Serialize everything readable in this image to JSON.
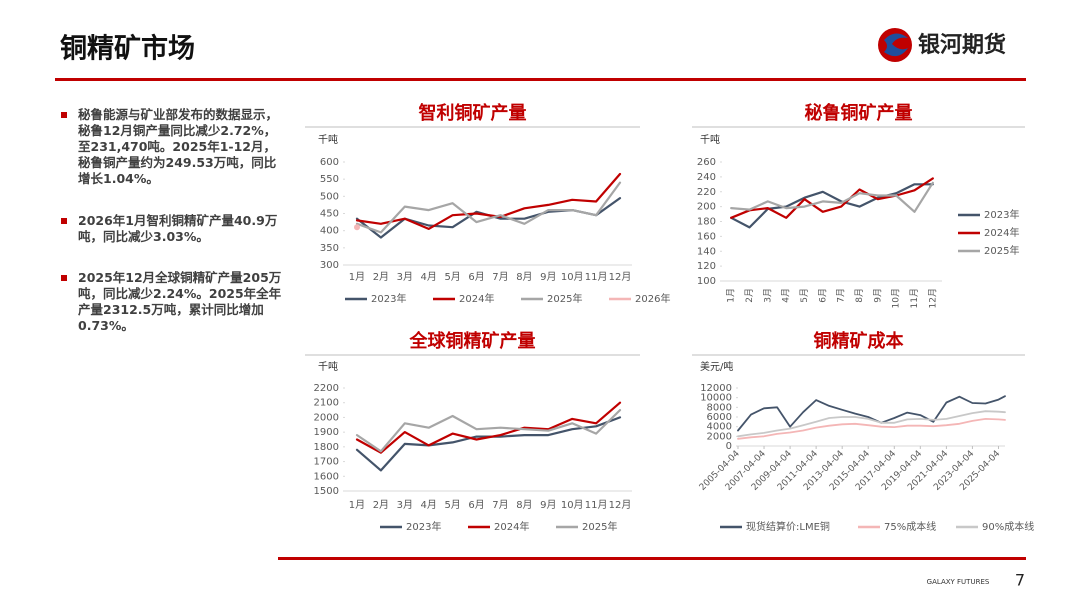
{
  "header": {
    "title": "铜精矿市场",
    "brand": "银河期货"
  },
  "bullets": [
    "秘鲁能源与矿业部发布的数据显示，秘鲁12月铜产量同比减少2.72%，至231,470吨。2025年1-12月，秘鲁铜产量约为249.53万吨，同比增长1.04%。",
    "2026年1月智利铜精矿产量40.9万吨，同比减少3.03%。",
    "2025年12月全球铜精矿产量205万吨，同比减少2.24%。2025年全年产量2312.5万吨，累计同比增加0.73%。"
  ],
  "footer": {
    "brand": "GALAXY FUTURES",
    "page": "7"
  },
  "chart_data": [
    {
      "type": "line",
      "title": "智利铜矿产量",
      "y_label": "千吨",
      "legend": "bottom",
      "categories": [
        "1月",
        "2月",
        "3月",
        "4月",
        "5月",
        "6月",
        "7月",
        "8月",
        "9月",
        "10月",
        "11月",
        "12月"
      ],
      "ylim": [
        300,
        600
      ],
      "yticks": [
        300,
        350,
        400,
        450,
        500,
        550,
        600
      ],
      "series": [
        {
          "name": "2023年",
          "color": "#44546a",
          "values": [
            435,
            380,
            435,
            415,
            410,
            455,
            435,
            435,
            455,
            460,
            445,
            495
          ]
        },
        {
          "name": "2024年",
          "color": "#c00000",
          "values": [
            430,
            420,
            435,
            405,
            445,
            450,
            440,
            465,
            475,
            490,
            485,
            565
          ]
        },
        {
          "name": "2025年",
          "color": "#a6a6a6",
          "values": [
            420,
            395,
            470,
            460,
            480,
            425,
            445,
            420,
            460,
            460,
            445,
            540
          ]
        },
        {
          "name": "2026年",
          "color": "#f4b6b6",
          "values": [
            410,
            null,
            null,
            null,
            null,
            null,
            null,
            null,
            null,
            null,
            null,
            null
          ]
        }
      ]
    },
    {
      "type": "line",
      "title": "秘鲁铜矿产量",
      "y_label": "千吨",
      "legend": "right",
      "categories": [
        "1月",
        "2月",
        "3月",
        "4月",
        "5月",
        "6月",
        "7月",
        "8月",
        "9月",
        "10月",
        "11月",
        "12月"
      ],
      "ylim": [
        100,
        260
      ],
      "yticks": [
        100,
        120,
        140,
        160,
        180,
        200,
        220,
        240,
        260
      ],
      "series": [
        {
          "name": "2023年",
          "color": "#44546a",
          "values": [
            185,
            172,
            197,
            200,
            212,
            220,
            207,
            200,
            212,
            218,
            230,
            230
          ]
        },
        {
          "name": "2024年",
          "color": "#c00000",
          "values": [
            185,
            195,
            198,
            185,
            210,
            193,
            200,
            223,
            210,
            215,
            222,
            238
          ]
        },
        {
          "name": "2025年",
          "color": "#a6a6a6",
          "values": [
            198,
            196,
            207,
            198,
            200,
            207,
            205,
            218,
            215,
            215,
            193,
            232
          ]
        }
      ]
    },
    {
      "type": "line",
      "title": "全球铜精矿产量",
      "y_label": "千吨",
      "legend": "bottom",
      "categories": [
        "1月",
        "2月",
        "3月",
        "4月",
        "5月",
        "6月",
        "7月",
        "8月",
        "9月",
        "10月",
        "11月",
        "12月"
      ],
      "ylim": [
        1500,
        2200
      ],
      "yticks": [
        1500,
        1600,
        1700,
        1800,
        1900,
        2000,
        2100,
        2200
      ],
      "series": [
        {
          "name": "2023年",
          "color": "#44546a",
          "values": [
            1780,
            1640,
            1820,
            1810,
            1830,
            1870,
            1870,
            1880,
            1880,
            1920,
            1940,
            2000
          ]
        },
        {
          "name": "2024年",
          "color": "#c00000",
          "values": [
            1850,
            1760,
            1900,
            1810,
            1890,
            1850,
            1880,
            1930,
            1920,
            1990,
            1960,
            2100
          ]
        },
        {
          "name": "2025年",
          "color": "#a6a6a6",
          "values": [
            1880,
            1770,
            1960,
            1930,
            2010,
            1920,
            1930,
            1920,
            1910,
            1960,
            1890,
            2050
          ]
        }
      ]
    },
    {
      "type": "timeline",
      "title": "铜精矿成本",
      "y_label": "美元/吨",
      "legend": "bottom",
      "x": [
        "2005-04-04",
        "2006-04-04",
        "2007-04-04",
        "2008-04-04",
        "2009-04-04",
        "2010-04-04",
        "2011-04-04",
        "2012-04-04",
        "2013-04-04",
        "2014-04-04",
        "2015-04-04",
        "2016-04-04",
        "2017-04-04",
        "2018-04-04",
        "2019-04-04",
        "2020-04-04",
        "2021-04-04",
        "2022-04-04",
        "2023-04-04",
        "2024-04-04",
        "2025-04-04",
        "2025-10-04"
      ],
      "xlim": [
        "2005-04-04",
        "2025-10-04"
      ],
      "xticks": [
        "2005-04-04",
        "2007-04-04",
        "2009-04-04",
        "2011-04-04",
        "2013-04-04",
        "2015-04-04",
        "2017-04-04",
        "2019-04-04",
        "2021-04-04",
        "2023-04-04",
        "2025-04-04"
      ],
      "ylim": [
        0,
        12000
      ],
      "yticks": [
        0,
        2000,
        4000,
        6000,
        8000,
        10000,
        12000
      ],
      "series": [
        {
          "name": "现货结算价:LME铜",
          "color": "#44546a",
          "values": [
            3200,
            6500,
            7800,
            8000,
            4000,
            7000,
            9500,
            8300,
            7500,
            6700,
            6000,
            4800,
            5800,
            6900,
            6400,
            5000,
            9000,
            10200,
            8900,
            8800,
            9600,
            10300
          ]
        },
        {
          "name": "75%成本线",
          "color": "#f4b6b6",
          "values": [
            1500,
            1800,
            2000,
            2500,
            2800,
            3200,
            3800,
            4200,
            4500,
            4600,
            4300,
            4000,
            3900,
            4200,
            4200,
            4100,
            4300,
            4600,
            5200,
            5600,
            5500,
            5400
          ]
        },
        {
          "name": "90%成本线",
          "color": "#c8c8c8",
          "values": [
            2000,
            2400,
            2700,
            3200,
            3600,
            4300,
            5000,
            5800,
            6000,
            6000,
            5600,
            4800,
            4800,
            5500,
            5600,
            5400,
            5600,
            6200,
            6800,
            7200,
            7100,
            7000
          ]
        }
      ]
    }
  ]
}
